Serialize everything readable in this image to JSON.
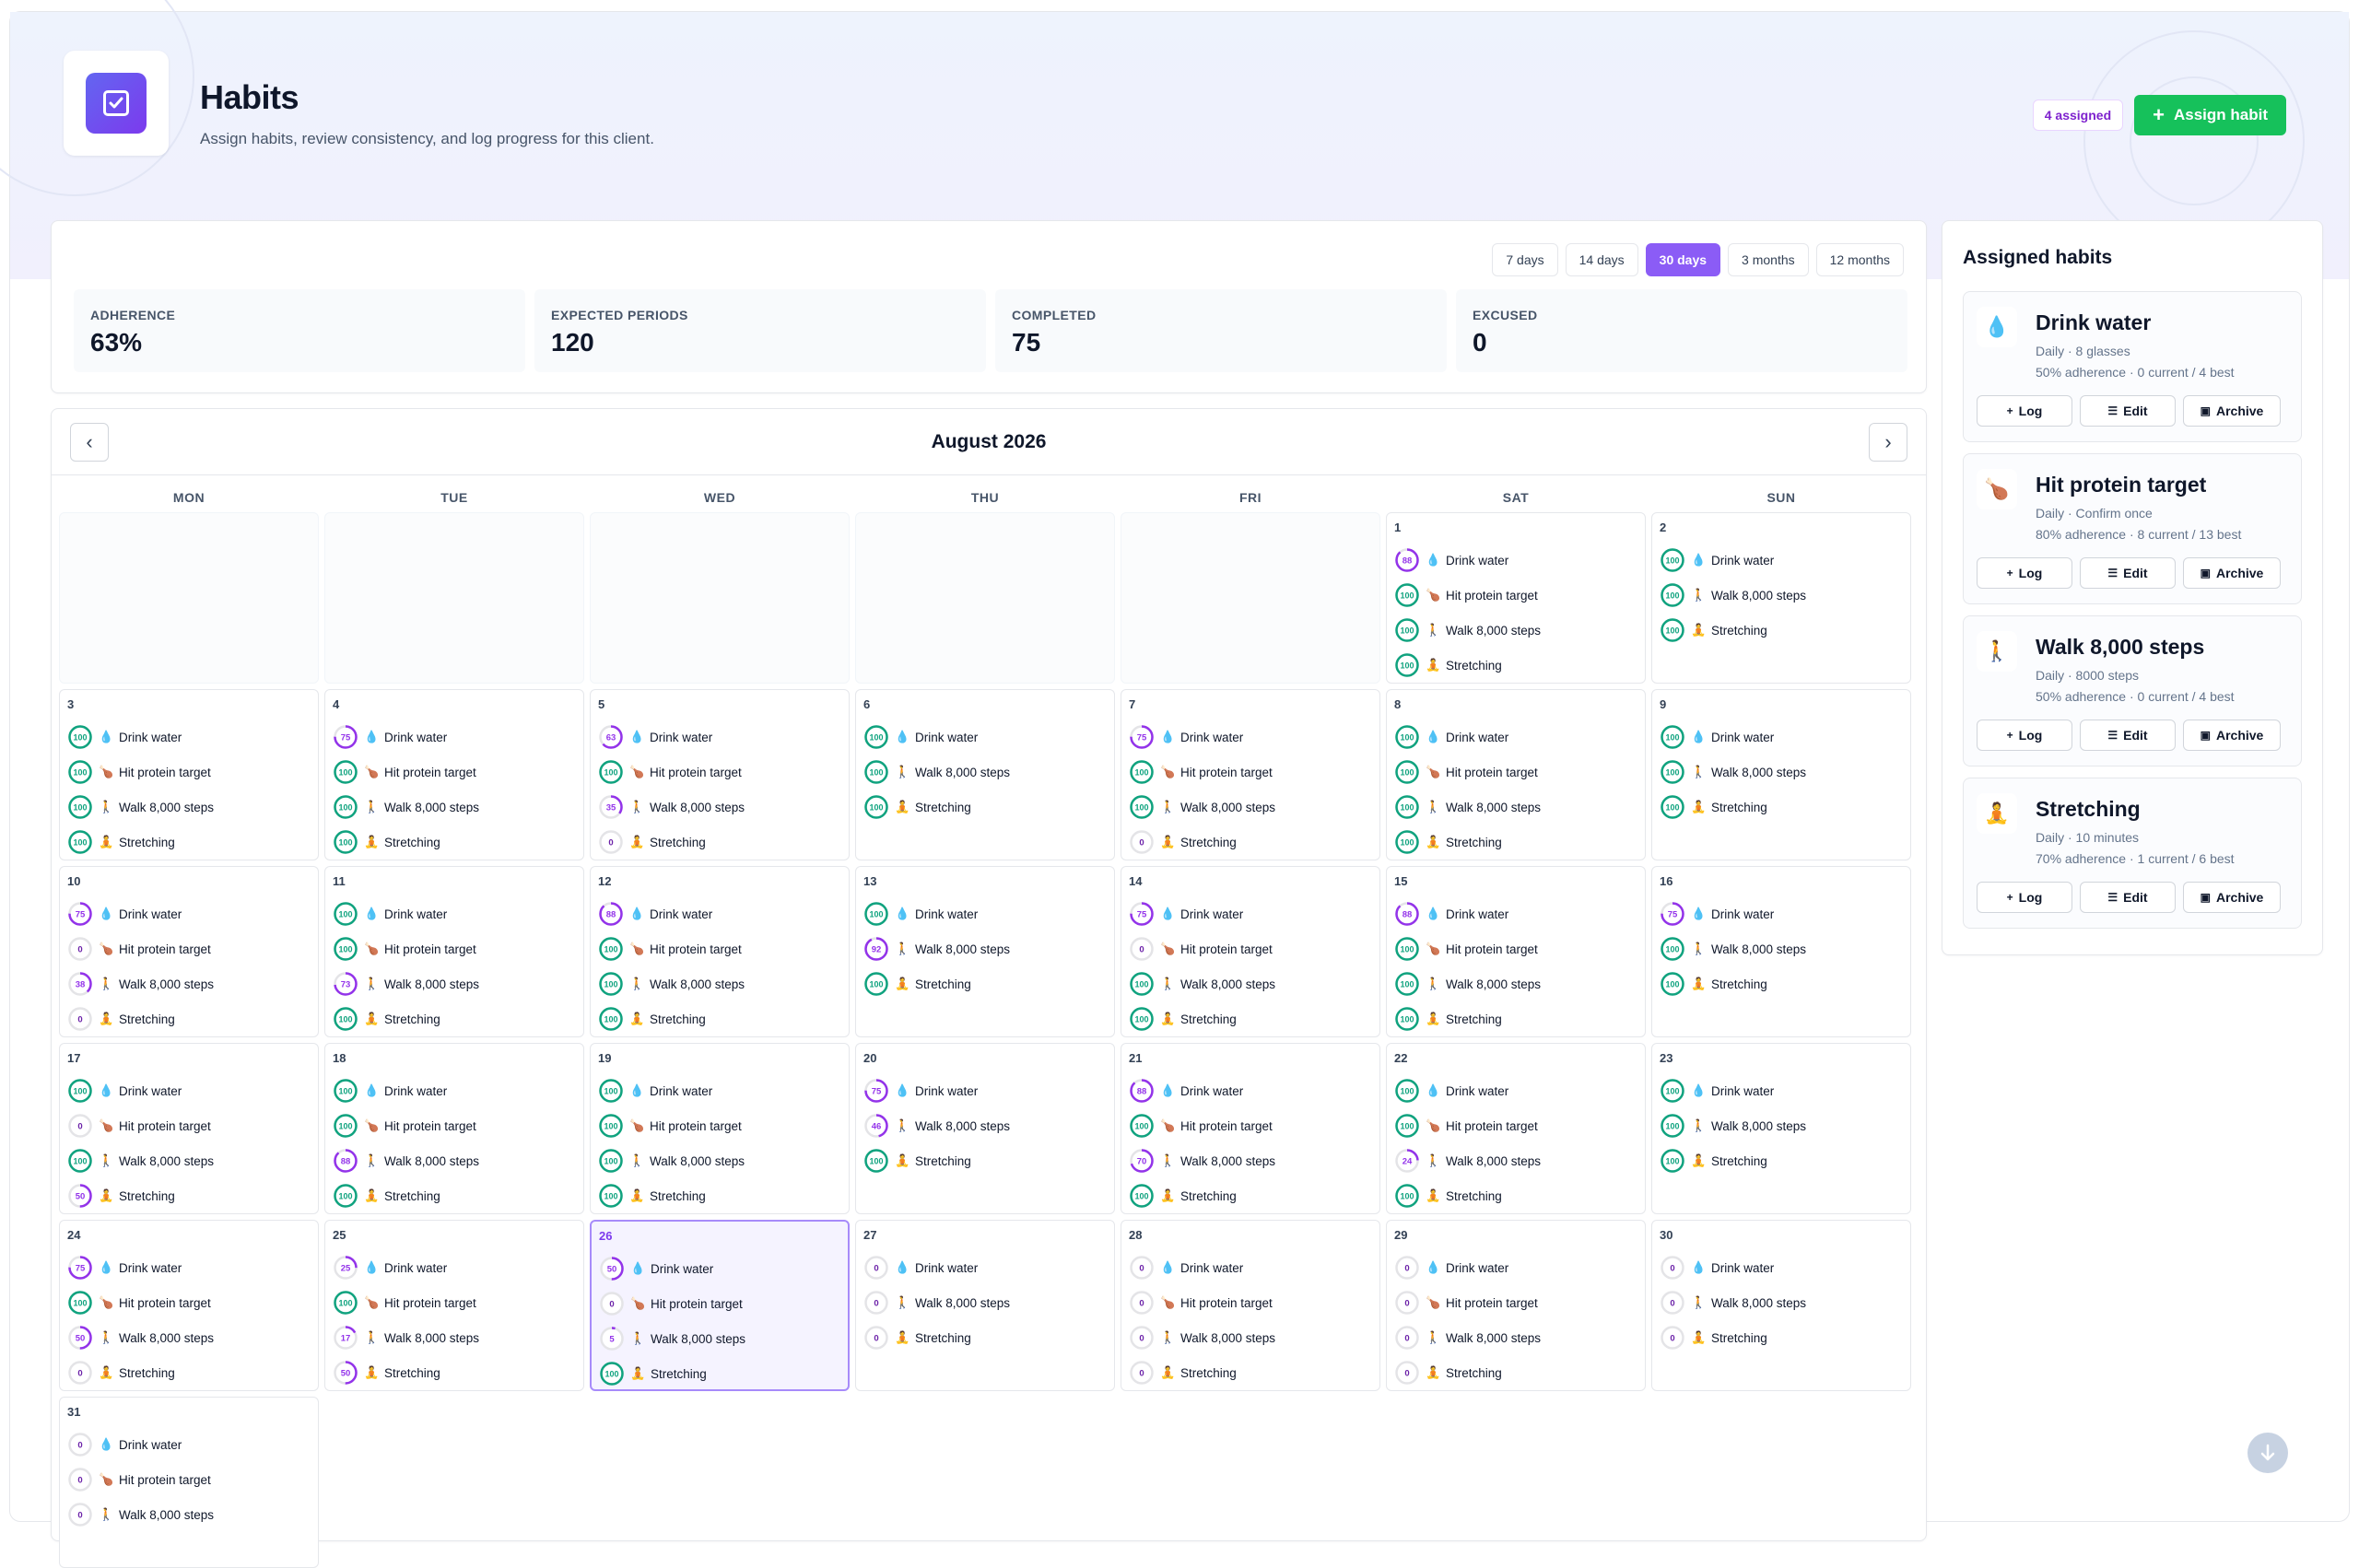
{
  "header": {
    "title": "Habits",
    "subtitle": "Assign habits, review consistency, and log progress for this client.",
    "assigned_badge": "4 assigned",
    "assign_button": "Assign habit"
  },
  "range": {
    "options": [
      "7 days",
      "14 days",
      "30 days",
      "3 months",
      "12 months"
    ],
    "selected": "30 days"
  },
  "stats": [
    {
      "label": "ADHERENCE",
      "value": "63%"
    },
    {
      "label": "EXPECTED PERIODS",
      "value": "120"
    },
    {
      "label": "COMPLETED",
      "value": "75"
    },
    {
      "label": "EXCUSED",
      "value": "0"
    }
  ],
  "calendar": {
    "month": "August 2026",
    "weekdays": [
      "MON",
      "TUE",
      "WED",
      "THU",
      "FRI",
      "SAT",
      "SUN"
    ],
    "first_weekday_index": 5,
    "today": 26,
    "days": [
      {
        "day": 1,
        "items": [
          [
            "water",
            88
          ],
          [
            "protein",
            100
          ],
          [
            "walk",
            100
          ],
          [
            "stretch",
            100
          ]
        ]
      },
      {
        "day": 2,
        "items": [
          [
            "water",
            100
          ],
          [
            "walk",
            100
          ],
          [
            "stretch",
            100
          ]
        ]
      },
      {
        "day": 3,
        "items": [
          [
            "water",
            100
          ],
          [
            "protein",
            100
          ],
          [
            "walk",
            100
          ],
          [
            "stretch",
            100
          ]
        ]
      },
      {
        "day": 4,
        "items": [
          [
            "water",
            75
          ],
          [
            "protein",
            100
          ],
          [
            "walk",
            100
          ],
          [
            "stretch",
            100
          ]
        ]
      },
      {
        "day": 5,
        "items": [
          [
            "water",
            63
          ],
          [
            "protein",
            100
          ],
          [
            "walk",
            35
          ],
          [
            "stretch",
            0
          ]
        ]
      },
      {
        "day": 6,
        "items": [
          [
            "water",
            100
          ],
          [
            "walk",
            100
          ],
          [
            "stretch",
            100
          ]
        ]
      },
      {
        "day": 7,
        "items": [
          [
            "water",
            75
          ],
          [
            "protein",
            100
          ],
          [
            "walk",
            100
          ],
          [
            "stretch",
            0
          ]
        ]
      },
      {
        "day": 8,
        "items": [
          [
            "water",
            100
          ],
          [
            "protein",
            100
          ],
          [
            "walk",
            100
          ],
          [
            "stretch",
            100
          ]
        ]
      },
      {
        "day": 9,
        "items": [
          [
            "water",
            100
          ],
          [
            "walk",
            100
          ],
          [
            "stretch",
            100
          ]
        ]
      },
      {
        "day": 10,
        "items": [
          [
            "water",
            75
          ],
          [
            "protein",
            0
          ],
          [
            "walk",
            38
          ],
          [
            "stretch",
            0
          ]
        ]
      },
      {
        "day": 11,
        "items": [
          [
            "water",
            100
          ],
          [
            "protein",
            100
          ],
          [
            "walk",
            73
          ],
          [
            "stretch",
            100
          ]
        ]
      },
      {
        "day": 12,
        "items": [
          [
            "water",
            88
          ],
          [
            "protein",
            100
          ],
          [
            "walk",
            100
          ],
          [
            "stretch",
            100
          ]
        ]
      },
      {
        "day": 13,
        "items": [
          [
            "water",
            100
          ],
          [
            "walk",
            92
          ],
          [
            "stretch",
            100
          ]
        ]
      },
      {
        "day": 14,
        "items": [
          [
            "water",
            75
          ],
          [
            "protein",
            0
          ],
          [
            "walk",
            100
          ],
          [
            "stretch",
            100
          ]
        ]
      },
      {
        "day": 15,
        "items": [
          [
            "water",
            88
          ],
          [
            "protein",
            100
          ],
          [
            "walk",
            100
          ],
          [
            "stretch",
            100
          ]
        ]
      },
      {
        "day": 16,
        "items": [
          [
            "water",
            75
          ],
          [
            "walk",
            100
          ],
          [
            "stretch",
            100
          ]
        ]
      },
      {
        "day": 17,
        "items": [
          [
            "water",
            100
          ],
          [
            "protein",
            0
          ],
          [
            "walk",
            100
          ],
          [
            "stretch",
            50
          ]
        ]
      },
      {
        "day": 18,
        "items": [
          [
            "water",
            100
          ],
          [
            "protein",
            100
          ],
          [
            "walk",
            88
          ],
          [
            "stretch",
            100
          ]
        ]
      },
      {
        "day": 19,
        "items": [
          [
            "water",
            100
          ],
          [
            "protein",
            100
          ],
          [
            "walk",
            100
          ],
          [
            "stretch",
            100
          ]
        ]
      },
      {
        "day": 20,
        "items": [
          [
            "water",
            75
          ],
          [
            "walk",
            46
          ],
          [
            "stretch",
            100
          ]
        ]
      },
      {
        "day": 21,
        "items": [
          [
            "water",
            88
          ],
          [
            "protein",
            100
          ],
          [
            "walk",
            70
          ],
          [
            "stretch",
            100
          ]
        ]
      },
      {
        "day": 22,
        "items": [
          [
            "water",
            100
          ],
          [
            "protein",
            100
          ],
          [
            "walk",
            24
          ],
          [
            "stretch",
            100
          ]
        ]
      },
      {
        "day": 23,
        "items": [
          [
            "water",
            100
          ],
          [
            "walk",
            100
          ],
          [
            "stretch",
            100
          ]
        ]
      },
      {
        "day": 24,
        "items": [
          [
            "water",
            75
          ],
          [
            "protein",
            100
          ],
          [
            "walk",
            50
          ],
          [
            "stretch",
            0
          ]
        ]
      },
      {
        "day": 25,
        "items": [
          [
            "water",
            25
          ],
          [
            "protein",
            100
          ],
          [
            "walk",
            17
          ],
          [
            "stretch",
            50
          ]
        ]
      },
      {
        "day": 26,
        "items": [
          [
            "water",
            50
          ],
          [
            "protein",
            0
          ],
          [
            "walk",
            5
          ],
          [
            "stretch",
            100
          ]
        ]
      },
      {
        "day": 27,
        "items": [
          [
            "water",
            0
          ],
          [
            "walk",
            0
          ],
          [
            "stretch",
            0
          ]
        ]
      },
      {
        "day": 28,
        "items": [
          [
            "water",
            0
          ],
          [
            "protein",
            0
          ],
          [
            "walk",
            0
          ],
          [
            "stretch",
            0
          ]
        ]
      },
      {
        "day": 29,
        "items": [
          [
            "water",
            0
          ],
          [
            "protein",
            0
          ],
          [
            "walk",
            0
          ],
          [
            "stretch",
            0
          ]
        ]
      },
      {
        "day": 30,
        "items": [
          [
            "water",
            0
          ],
          [
            "walk",
            0
          ],
          [
            "stretch",
            0
          ]
        ]
      },
      {
        "day": 31,
        "items": [
          [
            "water",
            0
          ],
          [
            "protein",
            0
          ],
          [
            "walk",
            0
          ]
        ]
      }
    ]
  },
  "habit_labels": {
    "water": {
      "label": "Drink water",
      "emoji": "💧"
    },
    "protein": {
      "label": "Hit protein target",
      "emoji": "🍗"
    },
    "walk": {
      "label": "Walk 8,000 steps",
      "emoji": "🚶"
    },
    "stretch": {
      "label": "Stretching",
      "emoji": "🧘"
    }
  },
  "sidebar": {
    "title": "Assigned habits",
    "habits": [
      {
        "name": "Drink water",
        "emoji": "💧",
        "meta": "Daily · 8 glasses",
        "stat": "50% adherence · 0 current / 4 best"
      },
      {
        "name": "Hit protein target",
        "emoji": "🍗",
        "meta": "Daily · Confirm once",
        "stat": "80% adherence · 8 current / 13 best"
      },
      {
        "name": "Walk 8,000 steps",
        "emoji": "🚶",
        "meta": "Daily · 8000 steps",
        "stat": "50% adherence · 0 current / 4 best"
      },
      {
        "name": "Stretching",
        "emoji": "🧘",
        "meta": "Daily · 10 minutes",
        "stat": "70% adherence · 1 current / 6 best"
      }
    ],
    "actions": {
      "log": "Log",
      "edit": "Edit",
      "archive": "Archive"
    }
  },
  "colors": {
    "complete": "#10a37f",
    "partial": "#9333ea",
    "empty": "#d4d4d8",
    "accent": "#8b5cf6",
    "assign": "#16c15b"
  }
}
